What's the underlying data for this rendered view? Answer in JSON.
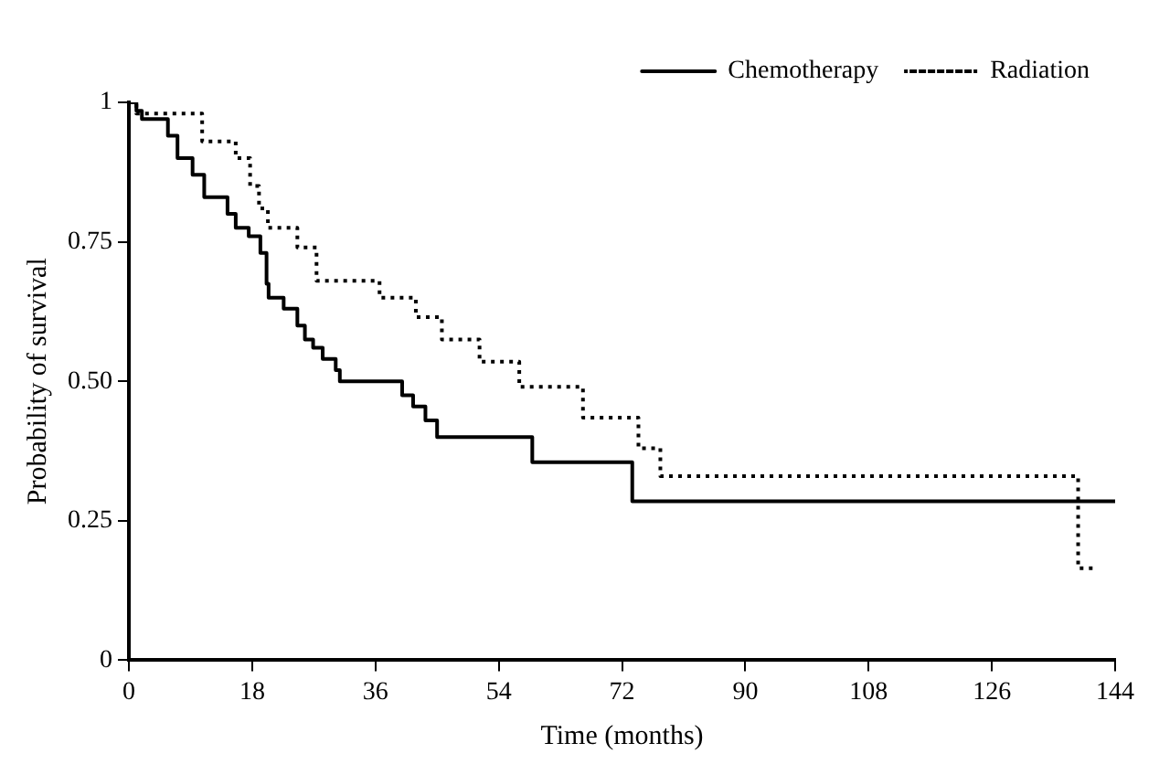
{
  "chart_data": {
    "type": "step",
    "xlabel": "Time (months)",
    "ylabel": "Probability of survival",
    "xlim": [
      0,
      144
    ],
    "xticks": [
      0,
      18,
      36,
      54,
      72,
      90,
      108,
      126,
      144
    ],
    "ylim": [
      0,
      1
    ],
    "yticks": [
      0,
      {
        "value": 0.25,
        "label": "0.25"
      },
      {
        "value": 0.5,
        "label": "0.50"
      },
      {
        "value": 0.75,
        "label": "0.75"
      },
      1
    ],
    "grid": false,
    "legend": "top right",
    "marker": "none",
    "series": [
      {
        "name": "Chemotherapy",
        "color": "#000000",
        "line_style": "solid",
        "x": [
          0,
          1.1,
          1.9,
          5.7,
          7.1,
          9.3,
          11,
          14.4,
          15.6,
          17.5,
          19.2,
          20.1,
          20.4,
          22.6,
          24.6,
          25.7,
          26.9,
          28.3,
          30.2,
          30.8,
          39.9,
          41.5,
          43.3,
          45,
          58.9,
          73.5,
          144
        ],
        "values": [
          1,
          0.985,
          0.97,
          0.94,
          0.9,
          0.87,
          0.83,
          0.8,
          0.775,
          0.76,
          0.73,
          0.675,
          0.65,
          0.63,
          0.6,
          0.575,
          0.56,
          0.54,
          0.52,
          0.5,
          0.475,
          0.455,
          0.43,
          0.4,
          0.355,
          0.285,
          0.285
        ]
      },
      {
        "name": "Radiation",
        "color": "#000000",
        "line_style": "dotted",
        "x": [
          0,
          1.1,
          10.7,
          15.6,
          17.7,
          19,
          20.3,
          24.6,
          27.4,
          36.6,
          41.9,
          45.7,
          51.2,
          57,
          66.3,
          74.4,
          77.6,
          138.6,
          141.4
        ],
        "values": [
          1,
          0.98,
          0.93,
          0.9,
          0.85,
          0.81,
          0.775,
          0.74,
          0.68,
          0.65,
          0.615,
          0.575,
          0.535,
          0.49,
          0.435,
          0.38,
          0.33,
          0.165,
          0.165
        ]
      }
    ]
  }
}
